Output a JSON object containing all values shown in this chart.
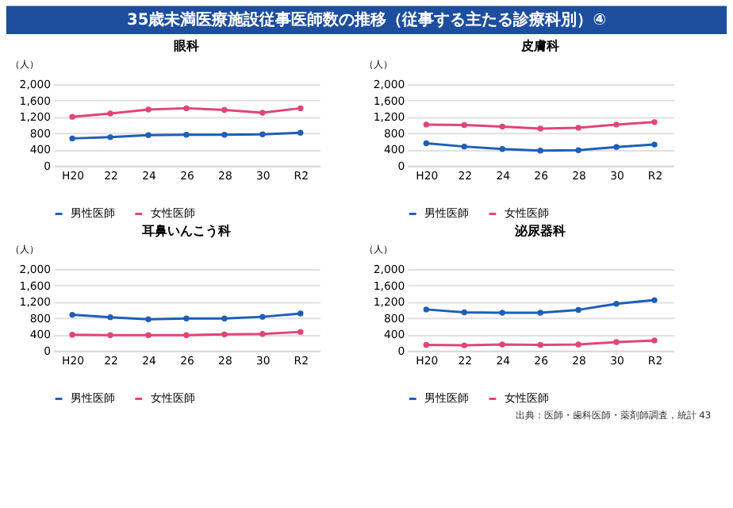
{
  "chart_data": [
    {
      "type": "line",
      "title": "眼科",
      "ylabel": "（人）",
      "annotations": [
        "35歳未満医療施設従事医師数の推移（従事する主たる診療科別）④"
      ],
      "categories": [
        "H20",
        "22",
        "24",
        "26",
        "28",
        "30",
        "R2"
      ],
      "ylim": [
        0,
        2000
      ],
      "yticks": [
        0,
        400,
        800,
        {
          "value": 1200,
          "label": "1,200"
        },
        {
          "value": 1600,
          "label": "1,600"
        },
        {
          "value": 2000,
          "label": "2,000"
        }
      ],
      "grid": "y",
      "legend": "bottom",
      "marker": "circle",
      "series": [
        {
          "name": "男性医師",
          "color": "#1f5fb8",
          "values": [
            670,
            700,
            750,
            760,
            760,
            770,
            810
          ]
        },
        {
          "name": "女性医師",
          "color": "#e0457b",
          "values": [
            1200,
            1280,
            1380,
            1410,
            1370,
            1300,
            1410
          ]
        }
      ]
    },
    {
      "type": "line",
      "title": "皮膚科",
      "ylabel": "（人）",
      "categories": [
        "H20",
        "22",
        "24",
        "26",
        "28",
        "30",
        "R2"
      ],
      "ylim": [
        0,
        2000
      ],
      "yticks": [
        0,
        400,
        800,
        {
          "value": 1200,
          "label": "1,200"
        },
        {
          "value": 1600,
          "label": "1,600"
        },
        {
          "value": 2000,
          "label": "2,000"
        }
      ],
      "grid": "y",
      "legend": "bottom",
      "marker": "circle",
      "series": [
        {
          "name": "男性医師",
          "color": "#1f5fb8",
          "values": [
            550,
            470,
            410,
            370,
            380,
            460,
            520
          ]
        },
        {
          "name": "女性医師",
          "color": "#e0457b",
          "values": [
            1010,
            1000,
            960,
            910,
            930,
            1010,
            1070
          ]
        }
      ]
    },
    {
      "type": "line",
      "title": "耳鼻いんこう科",
      "ylabel": "（人）",
      "categories": [
        "H20",
        "22",
        "24",
        "26",
        "28",
        "30",
        "R2"
      ],
      "ylim": [
        0,
        2000
      ],
      "yticks": [
        0,
        400,
        800,
        {
          "value": 1200,
          "label": "1,200"
        },
        {
          "value": 1600,
          "label": "1,600"
        },
        {
          "value": 2000,
          "label": "2,000"
        }
      ],
      "grid": "y",
      "legend": "bottom",
      "marker": "circle",
      "series": [
        {
          "name": "男性医師",
          "color": "#1f5fb8",
          "values": [
            880,
            820,
            770,
            790,
            790,
            830,
            910
          ]
        },
        {
          "name": "女性医師",
          "color": "#e0457b",
          "values": [
            390,
            380,
            380,
            380,
            400,
            410,
            460
          ]
        }
      ]
    },
    {
      "type": "line",
      "title": "泌尿器科",
      "ylabel": "（人）",
      "annotations": [
        "出典：医師・歯科医師・薬剤師調査，統計",
        "43"
      ],
      "categories": [
        "H20",
        "22",
        "24",
        "26",
        "28",
        "30",
        "R2"
      ],
      "ylim": [
        0,
        2000
      ],
      "yticks": [
        0,
        400,
        800,
        {
          "value": 1200,
          "label": "1,200"
        },
        {
          "value": 1600,
          "label": "1,600"
        },
        {
          "value": 2000,
          "label": "2,000"
        }
      ],
      "grid": "y",
      "legend": "bottom",
      "marker": "circle",
      "series": [
        {
          "name": "男性医師",
          "color": "#1f5fb8",
          "values": [
            1010,
            940,
            930,
            930,
            1000,
            1150,
            1240
          ]
        },
        {
          "name": "女性医師",
          "color": "#e0457b",
          "values": [
            140,
            130,
            150,
            140,
            150,
            210,
            250
          ]
        }
      ]
    }
  ]
}
